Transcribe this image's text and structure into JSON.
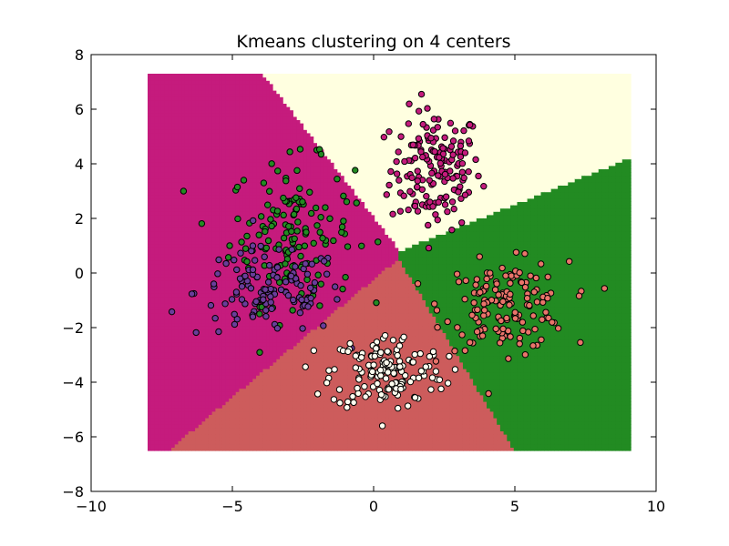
{
  "chart_data": {
    "type": "scatter",
    "title": "Kmeans clustering on 4 centers",
    "xlabel": "",
    "ylabel": "",
    "xlim": [
      -10,
      10
    ],
    "ylim": [
      -8,
      8
    ],
    "xticks": [
      "−10",
      "−5",
      "0",
      "5",
      "10"
    ],
    "yticks": [
      "−8",
      "−6",
      "−4",
      "−2",
      "0",
      "2",
      "4",
      "6",
      "8"
    ],
    "grid": false,
    "legend": "none",
    "decision_regions": {
      "xrange": [
        -8.0,
        9.1
      ],
      "yrange": [
        -6.5,
        7.3
      ],
      "colors": {
        "magenta": "#c51b7d",
        "lightyellow": "#ffffe0",
        "green": "#228b22",
        "salmon": "#cd5c5c"
      },
      "centroid_estimates": {
        "magenta": [
          -3.5,
          0.5
        ],
        "lightyellow": [
          2.5,
          5.0
        ],
        "green": [
          5.0,
          -1.0
        ],
        "salmon": [
          0.2,
          -3.8
        ]
      }
    },
    "series": [
      {
        "color": "#c51b7d",
        "center": [
          2.2,
          3.8
        ],
        "spread": [
          0.8,
          1.1
        ],
        "count": 160
      },
      {
        "color": "#238b22",
        "center": [
          -2.9,
          1.5
        ],
        "spread": [
          1.1,
          1.3
        ],
        "count": 150
      },
      {
        "color": "#6a3d9a",
        "center": [
          -3.7,
          -0.7
        ],
        "spread": [
          1.3,
          0.8
        ],
        "count": 120
      },
      {
        "color": "#e9746a",
        "center": [
          4.7,
          -1.2
        ],
        "spread": [
          1.1,
          0.8
        ],
        "count": 150
      },
      {
        "color": "#fffff0",
        "center": [
          0.5,
          -3.6
        ],
        "spread": [
          1.0,
          0.7
        ],
        "count": 150
      }
    ]
  }
}
